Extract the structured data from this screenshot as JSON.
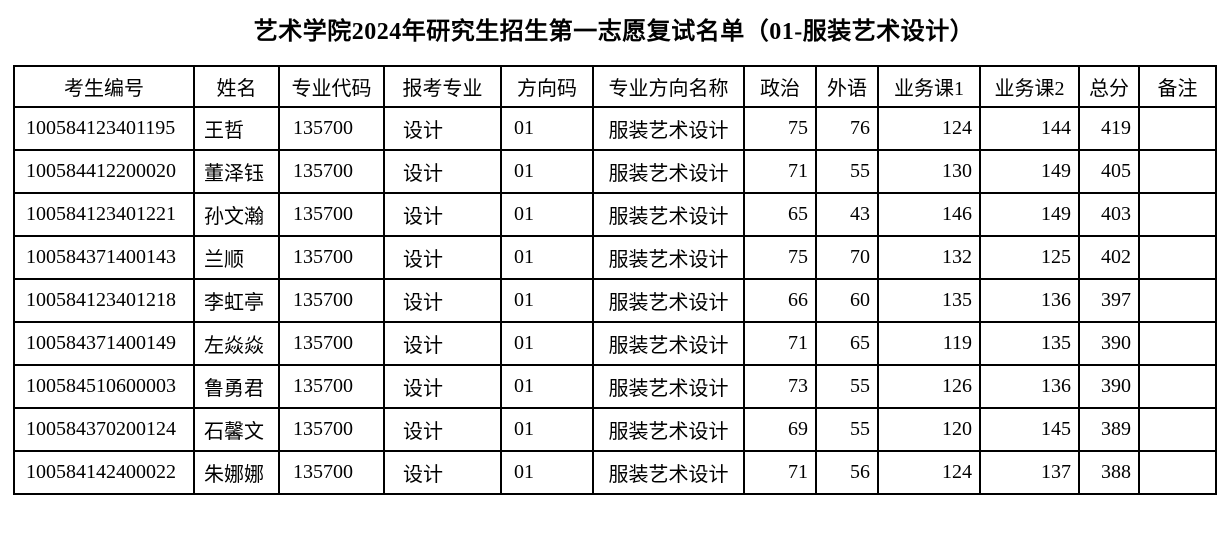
{
  "title": "艺术学院2024年研究生招生第一志愿复试名单（01-服装艺术设计）",
  "table": {
    "columns": [
      {
        "key": "candidate-id",
        "label": "考生编号"
      },
      {
        "key": "name",
        "label": "姓名"
      },
      {
        "key": "major-code",
        "label": "专业代码"
      },
      {
        "key": "applied-major",
        "label": "报考专业"
      },
      {
        "key": "direction-code",
        "label": "方向码"
      },
      {
        "key": "direction-name",
        "label": "专业方向名称"
      },
      {
        "key": "politics",
        "label": "政治"
      },
      {
        "key": "foreign-lang",
        "label": "外语"
      },
      {
        "key": "course1",
        "label": "业务课1"
      },
      {
        "key": "course2",
        "label": "业务课2"
      },
      {
        "key": "total",
        "label": "总分"
      },
      {
        "key": "remarks",
        "label": "备注"
      }
    ],
    "rows": [
      [
        "100584123401195",
        "王哲",
        "135700",
        "设计",
        "01",
        "服装艺术设计",
        "75",
        "76",
        "124",
        "144",
        "419",
        ""
      ],
      [
        "100584412200020",
        "董泽钰",
        "135700",
        "设计",
        "01",
        "服装艺术设计",
        "71",
        "55",
        "130",
        "149",
        "405",
        ""
      ],
      [
        "100584123401221",
        "孙文瀚",
        "135700",
        "设计",
        "01",
        "服装艺术设计",
        "65",
        "43",
        "146",
        "149",
        "403",
        ""
      ],
      [
        "100584371400143",
        "兰顺",
        "135700",
        "设计",
        "01",
        "服装艺术设计",
        "75",
        "70",
        "132",
        "125",
        "402",
        ""
      ],
      [
        "100584123401218",
        "李虹亭",
        "135700",
        "设计",
        "01",
        "服装艺术设计",
        "66",
        "60",
        "135",
        "136",
        "397",
        ""
      ],
      [
        "100584371400149",
        "左焱焱",
        "135700",
        "设计",
        "01",
        "服装艺术设计",
        "71",
        "65",
        "119",
        "135",
        "390",
        ""
      ],
      [
        "100584510600003",
        "鲁勇君",
        "135700",
        "设计",
        "01",
        "服装艺术设计",
        "73",
        "55",
        "126",
        "136",
        "390",
        ""
      ],
      [
        "100584370200124",
        "石馨文",
        "135700",
        "设计",
        "01",
        "服装艺术设计",
        "69",
        "55",
        "120",
        "145",
        "389",
        ""
      ],
      [
        "100584142400022",
        "朱娜娜",
        "135700",
        "设计",
        "01",
        "服装艺术设计",
        "71",
        "56",
        "124",
        "137",
        "388",
        ""
      ]
    ],
    "text_color": "#000000",
    "border_color": "#000000",
    "background_color": "#ffffff"
  }
}
